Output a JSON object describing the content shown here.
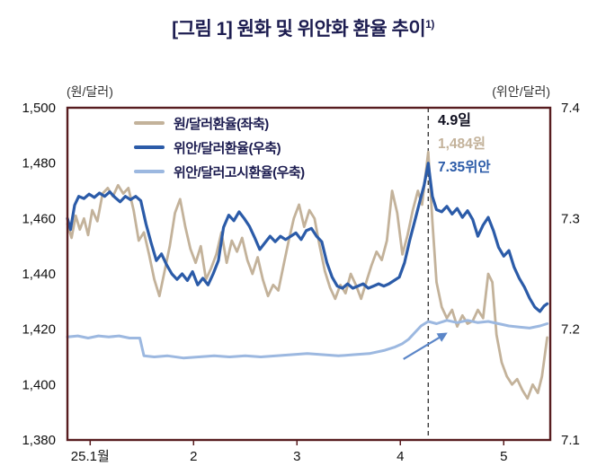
{
  "page": {
    "title": "[그림 1] 원화 및 위안화 환율 추이",
    "title_superscript": "1)"
  },
  "chart_data": {
    "type": "line",
    "title": "[그림 1] 원화 및 위안화 환율 추이 1)",
    "legend_position": "inside-top-left",
    "grid": false,
    "x_axis": {
      "min": -0.22,
      "max": 4.45,
      "tick_values": [
        0,
        1,
        2,
        3,
        4
      ],
      "tick_labels": [
        "25.1월",
        "2",
        "3",
        "4",
        "5"
      ]
    },
    "left_axis": {
      "label": "(원/달러)",
      "min": 1380,
      "max": 1500,
      "tick_values": [
        1380,
        1400,
        1420,
        1440,
        1460,
        1480,
        1500
      ],
      "tick_labels": [
        "1,380",
        "1,400",
        "1,420",
        "1,440",
        "1,460",
        "1,480",
        "1,500"
      ]
    },
    "right_axis": {
      "label": "(위안/달러)",
      "min": 7.1,
      "max": 7.4,
      "tick_values": [
        7.1,
        7.2,
        7.3,
        7.4
      ],
      "tick_labels": [
        "7.1",
        "7.2",
        "7.3",
        "7.4"
      ]
    },
    "series": [
      {
        "id": "won-dollar",
        "name": "원/달러환율(좌축)",
        "axis": "left",
        "color": "#c3b29a",
        "width": 2.8,
        "points": [
          [
            -0.22,
            1458
          ],
          [
            -0.18,
            1453
          ],
          [
            -0.14,
            1461
          ],
          [
            -0.1,
            1456
          ],
          [
            -0.06,
            1460
          ],
          [
            -0.02,
            1454
          ],
          [
            0.02,
            1463
          ],
          [
            0.07,
            1459
          ],
          [
            0.12,
            1469
          ],
          [
            0.17,
            1471
          ],
          [
            0.22,
            1468
          ],
          [
            0.27,
            1472
          ],
          [
            0.32,
            1469
          ],
          [
            0.37,
            1471
          ],
          [
            0.42,
            1463
          ],
          [
            0.47,
            1452
          ],
          [
            0.52,
            1455
          ],
          [
            0.57,
            1447
          ],
          [
            0.62,
            1438
          ],
          [
            0.67,
            1432
          ],
          [
            0.72,
            1441
          ],
          [
            0.77,
            1450
          ],
          [
            0.82,
            1462
          ],
          [
            0.87,
            1467
          ],
          [
            0.92,
            1457
          ],
          [
            0.97,
            1449
          ],
          [
            1.02,
            1444
          ],
          [
            1.07,
            1450
          ],
          [
            1.12,
            1438
          ],
          [
            1.17,
            1442
          ],
          [
            1.22,
            1447
          ],
          [
            1.27,
            1455
          ],
          [
            1.32,
            1444
          ],
          [
            1.37,
            1452
          ],
          [
            1.42,
            1448
          ],
          [
            1.47,
            1453
          ],
          [
            1.52,
            1445
          ],
          [
            1.57,
            1440
          ],
          [
            1.62,
            1446
          ],
          [
            1.67,
            1438
          ],
          [
            1.72,
            1432
          ],
          [
            1.77,
            1436
          ],
          [
            1.82,
            1434
          ],
          [
            1.87,
            1443
          ],
          [
            1.92,
            1452
          ],
          [
            1.97,
            1460
          ],
          [
            2.02,
            1465
          ],
          [
            2.07,
            1457
          ],
          [
            2.12,
            1463
          ],
          [
            2.17,
            1460
          ],
          [
            2.22,
            1450
          ],
          [
            2.27,
            1441
          ],
          [
            2.32,
            1435
          ],
          [
            2.37,
            1431
          ],
          [
            2.42,
            1436
          ],
          [
            2.47,
            1433
          ],
          [
            2.52,
            1440
          ],
          [
            2.57,
            1436
          ],
          [
            2.62,
            1431
          ],
          [
            2.67,
            1437
          ],
          [
            2.72,
            1443
          ],
          [
            2.77,
            1448
          ],
          [
            2.82,
            1445
          ],
          [
            2.87,
            1452
          ],
          [
            2.92,
            1470
          ],
          [
            2.97,
            1462
          ],
          [
            3.02,
            1447
          ],
          [
            3.07,
            1454
          ],
          [
            3.12,
            1463
          ],
          [
            3.17,
            1470
          ],
          [
            3.21,
            1465
          ],
          [
            3.27,
            1484
          ],
          [
            3.31,
            1459
          ],
          [
            3.35,
            1437
          ],
          [
            3.4,
            1428
          ],
          [
            3.45,
            1424
          ],
          [
            3.5,
            1427
          ],
          [
            3.55,
            1421
          ],
          [
            3.6,
            1425
          ],
          [
            3.65,
            1422
          ],
          [
            3.7,
            1423
          ],
          [
            3.75,
            1427
          ],
          [
            3.8,
            1424
          ],
          [
            3.85,
            1440
          ],
          [
            3.89,
            1437
          ],
          [
            3.93,
            1418
          ],
          [
            3.98,
            1408
          ],
          [
            4.03,
            1403
          ],
          [
            4.08,
            1400
          ],
          [
            4.13,
            1402
          ],
          [
            4.18,
            1398
          ],
          [
            4.23,
            1395
          ],
          [
            4.28,
            1400
          ],
          [
            4.33,
            1397
          ],
          [
            4.37,
            1403
          ],
          [
            4.42,
            1417
          ]
        ]
      },
      {
        "id": "yuan-dollar",
        "name": "위안/달러환율(우축)",
        "axis": "right",
        "color": "#2b5ba8",
        "width": 3.2,
        "points": [
          [
            -0.22,
            7.3
          ],
          [
            -0.19,
            7.29
          ],
          [
            -0.15,
            7.312
          ],
          [
            -0.11,
            7.32
          ],
          [
            -0.06,
            7.318
          ],
          [
            -0.01,
            7.322
          ],
          [
            0.04,
            7.319
          ],
          [
            0.09,
            7.323
          ],
          [
            0.14,
            7.32
          ],
          [
            0.19,
            7.324
          ],
          [
            0.24,
            7.319
          ],
          [
            0.29,
            7.315
          ],
          [
            0.34,
            7.32
          ],
          [
            0.39,
            7.317
          ],
          [
            0.44,
            7.32
          ],
          [
            0.49,
            7.316
          ],
          [
            0.54,
            7.295
          ],
          [
            0.59,
            7.278
          ],
          [
            0.64,
            7.262
          ],
          [
            0.69,
            7.268
          ],
          [
            0.74,
            7.258
          ],
          [
            0.79,
            7.25
          ],
          [
            0.84,
            7.245
          ],
          [
            0.89,
            7.25
          ],
          [
            0.94,
            7.244
          ],
          [
            0.99,
            7.252
          ],
          [
            1.04,
            7.24
          ],
          [
            1.09,
            7.246
          ],
          [
            1.14,
            7.24
          ],
          [
            1.19,
            7.25
          ],
          [
            1.24,
            7.262
          ],
          [
            1.29,
            7.292
          ],
          [
            1.34,
            7.303
          ],
          [
            1.39,
            7.298
          ],
          [
            1.44,
            7.306
          ],
          [
            1.49,
            7.3
          ],
          [
            1.54,
            7.293
          ],
          [
            1.59,
            7.283
          ],
          [
            1.64,
            7.272
          ],
          [
            1.69,
            7.278
          ],
          [
            1.74,
            7.284
          ],
          [
            1.79,
            7.279
          ],
          [
            1.84,
            7.284
          ],
          [
            1.89,
            7.281
          ],
          [
            1.94,
            7.284
          ],
          [
            1.99,
            7.287
          ],
          [
            2.04,
            7.281
          ],
          [
            2.09,
            7.289
          ],
          [
            2.14,
            7.291
          ],
          [
            2.19,
            7.284
          ],
          [
            2.24,
            7.279
          ],
          [
            2.29,
            7.26
          ],
          [
            2.34,
            7.247
          ],
          [
            2.39,
            7.239
          ],
          [
            2.44,
            7.237
          ],
          [
            2.49,
            7.241
          ],
          [
            2.54,
            7.237
          ],
          [
            2.59,
            7.239
          ],
          [
            2.64,
            7.241
          ],
          [
            2.69,
            7.237
          ],
          [
            2.74,
            7.239
          ],
          [
            2.79,
            7.241
          ],
          [
            2.84,
            7.239
          ],
          [
            2.89,
            7.241
          ],
          [
            2.94,
            7.244
          ],
          [
            2.99,
            7.247
          ],
          [
            3.04,
            7.26
          ],
          [
            3.09,
            7.28
          ],
          [
            3.14,
            7.298
          ],
          [
            3.19,
            7.316
          ],
          [
            3.23,
            7.33
          ],
          [
            3.27,
            7.35
          ],
          [
            3.31,
            7.32
          ],
          [
            3.35,
            7.308
          ],
          [
            3.4,
            7.306
          ],
          [
            3.45,
            7.311
          ],
          [
            3.5,
            7.304
          ],
          [
            3.55,
            7.309
          ],
          [
            3.6,
            7.301
          ],
          [
            3.65,
            7.307
          ],
          [
            3.7,
            7.299
          ],
          [
            3.75,
            7.284
          ],
          [
            3.8,
            7.294
          ],
          [
            3.85,
            7.301
          ],
          [
            3.9,
            7.289
          ],
          [
            3.95,
            7.274
          ],
          [
            4.0,
            7.266
          ],
          [
            4.05,
            7.271
          ],
          [
            4.1,
            7.256
          ],
          [
            4.15,
            7.246
          ],
          [
            4.2,
            7.238
          ],
          [
            4.25,
            7.228
          ],
          [
            4.3,
            7.22
          ],
          [
            4.35,
            7.216
          ],
          [
            4.39,
            7.221
          ],
          [
            4.42,
            7.223
          ]
        ]
      },
      {
        "id": "yuan-dollar-fixing",
        "name": "위안/달러고시환율(우축)",
        "axis": "right",
        "color": "#9cb8e0",
        "width": 3.0,
        "points": [
          [
            -0.22,
            7.193
          ],
          [
            -0.12,
            7.194
          ],
          [
            -0.02,
            7.192
          ],
          [
            0.08,
            7.194
          ],
          [
            0.18,
            7.193
          ],
          [
            0.28,
            7.194
          ],
          [
            0.38,
            7.192
          ],
          [
            0.48,
            7.192
          ],
          [
            0.52,
            7.176
          ],
          [
            0.62,
            7.175
          ],
          [
            0.75,
            7.176
          ],
          [
            0.9,
            7.174
          ],
          [
            1.05,
            7.175
          ],
          [
            1.2,
            7.176
          ],
          [
            1.35,
            7.175
          ],
          [
            1.5,
            7.176
          ],
          [
            1.65,
            7.175
          ],
          [
            1.8,
            7.176
          ],
          [
            1.95,
            7.177
          ],
          [
            2.1,
            7.178
          ],
          [
            2.25,
            7.177
          ],
          [
            2.4,
            7.176
          ],
          [
            2.55,
            7.177
          ],
          [
            2.7,
            7.178
          ],
          [
            2.85,
            7.181
          ],
          [
            2.95,
            7.184
          ],
          [
            3.02,
            7.187
          ],
          [
            3.08,
            7.191
          ],
          [
            3.14,
            7.197
          ],
          [
            3.2,
            7.203
          ],
          [
            3.27,
            7.207
          ],
          [
            3.35,
            7.205
          ],
          [
            3.45,
            7.208
          ],
          [
            3.55,
            7.206
          ],
          [
            3.65,
            7.208
          ],
          [
            3.75,
            7.206
          ],
          [
            3.85,
            7.207
          ],
          [
            3.95,
            7.205
          ],
          [
            4.05,
            7.203
          ],
          [
            4.15,
            7.202
          ],
          [
            4.25,
            7.201
          ],
          [
            4.35,
            7.203
          ],
          [
            4.42,
            7.205
          ]
        ]
      }
    ],
    "marker_line": {
      "x": 3.27,
      "color": "#3a3a3a",
      "dash": "5 4"
    },
    "annotation": {
      "date_label": "4.9일",
      "won_value": "1,484원",
      "yuan_value": "7.35위안"
    },
    "arrow": {
      "from": [
        3.03,
        7.173
      ],
      "to": [
        3.44,
        7.196
      ],
      "color": "#5b86c8"
    },
    "colors": {
      "border": "#571c1f",
      "tick_text": "#111111"
    }
  }
}
